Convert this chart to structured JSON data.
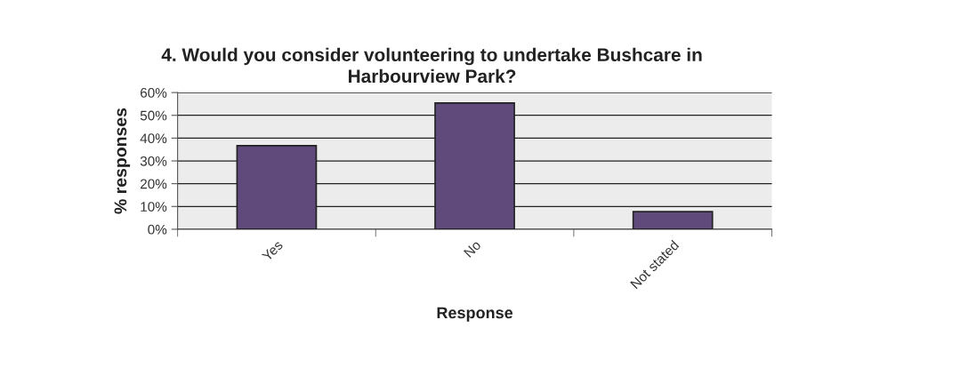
{
  "chart_data": {
    "type": "bar",
    "title": "4. Would you consider volunteering to undertake Bushcare in\nHarbourview Park?",
    "xlabel": "Response",
    "ylabel": "% responses",
    "categories": [
      "Yes",
      "No",
      "Not stated"
    ],
    "values": [
      36.7,
      55.4,
      7.7
    ],
    "color": "#5f4a7b",
    "ylim": [
      0,
      60
    ],
    "yticks": [
      {
        "value": 0,
        "label": "0%"
      },
      {
        "value": 10,
        "label": "10%"
      },
      {
        "value": 20,
        "label": "20%"
      },
      {
        "value": 30,
        "label": "30%"
      },
      {
        "value": 40,
        "label": "40%"
      },
      {
        "value": 50,
        "label": "50%"
      },
      {
        "value": 60,
        "label": "60%"
      }
    ],
    "grid": "y",
    "legend": false
  }
}
